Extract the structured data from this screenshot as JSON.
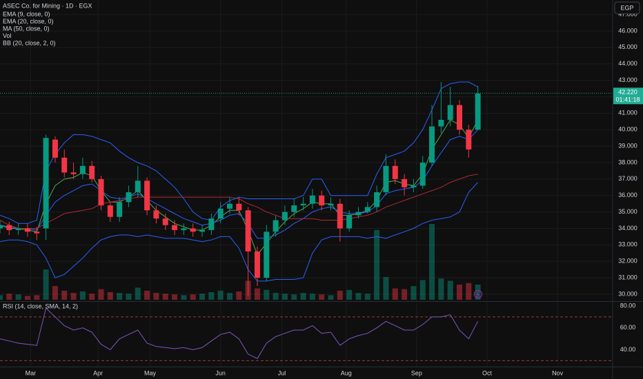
{
  "chart_data": [
    {
      "type": "candlestick",
      "title": "ASEC Co. for Mining · 1D · EGX",
      "currency": "EGP",
      "up_color": "#089981",
      "down_color": "#f23645",
      "x": [
        0,
        3,
        6,
        9,
        12,
        15,
        18,
        21,
        24,
        27,
        30,
        33,
        36,
        39,
        42,
        45,
        48,
        51,
        54,
        57,
        60,
        63,
        66,
        69,
        72,
        75,
        78,
        81,
        84,
        87,
        90,
        93,
        96,
        99,
        102,
        105,
        108,
        111,
        114,
        117,
        120,
        123,
        126,
        129,
        132,
        135,
        138,
        141,
        144,
        147,
        150,
        153,
        156
      ],
      "open": [
        34.0,
        34.2,
        33.9,
        34.0,
        33.8,
        34.0,
        39.4,
        38.3,
        37.4,
        37.3,
        37.8,
        37.0,
        35.4,
        34.7,
        35.6,
        36.2,
        36.9,
        35.1,
        34.6,
        34.2,
        33.9,
        34.0,
        33.8,
        33.9,
        34.6,
        35.2,
        35.5,
        35.1,
        32.6,
        31.0,
        33.8,
        34.5,
        35.0,
        35.4,
        35.5,
        36.0,
        35.4,
        35.5,
        34.0,
        34.8,
        35.0,
        35.3,
        36.2,
        37.8,
        37.0,
        36.5,
        36.6,
        38.0,
        40.2,
        40.6,
        41.5,
        40.0,
        40.0
      ],
      "high": [
        34.5,
        34.4,
        34.3,
        34.3,
        34.1,
        39.7,
        39.6,
        38.8,
        38.0,
        38.3,
        38.1,
        37.2,
        35.6,
        35.9,
        36.6,
        37.8,
        37.1,
        35.4,
        34.9,
        34.5,
        34.3,
        34.3,
        34.2,
        34.9,
        35.6,
        35.9,
        35.9,
        35.3,
        32.9,
        34.2,
        34.8,
        35.4,
        35.8,
        35.9,
        36.4,
        36.3,
        35.9,
        35.8,
        35.1,
        35.3,
        35.6,
        36.6,
        38.5,
        38.2,
        37.3,
        37.0,
        38.4,
        41.5,
        42.9,
        42.6,
        41.8,
        40.3,
        42.65
      ],
      "low": [
        33.7,
        33.6,
        33.6,
        33.5,
        33.3,
        33.3,
        38.0,
        37.1,
        37.0,
        37.0,
        36.8,
        35.1,
        34.4,
        34.4,
        35.3,
        35.9,
        34.8,
        34.3,
        33.9,
        33.6,
        33.6,
        33.5,
        33.5,
        33.6,
        34.3,
        34.9,
        34.8,
        29.9,
        30.5,
        30.8,
        33.5,
        34.2,
        34.7,
        35.1,
        35.2,
        35.1,
        35.1,
        33.2,
        33.8,
        34.6,
        34.9,
        35.0,
        36.0,
        36.7,
        36.0,
        36.2,
        36.4,
        37.8,
        39.8,
        40.2,
        39.7,
        38.3,
        40.0
      ],
      "close": [
        34.2,
        33.9,
        34.0,
        33.8,
        33.7,
        39.5,
        38.3,
        37.4,
        37.3,
        37.8,
        37.0,
        35.4,
        34.7,
        35.6,
        36.2,
        36.9,
        35.1,
        34.6,
        34.2,
        33.9,
        34.0,
        33.8,
        33.9,
        34.6,
        35.2,
        35.5,
        35.1,
        32.6,
        31.0,
        33.8,
        34.5,
        35.0,
        35.4,
        35.5,
        36.0,
        35.4,
        35.5,
        34.0,
        34.8,
        35.0,
        35.3,
        36.2,
        37.8,
        37.0,
        36.5,
        36.6,
        38.0,
        40.2,
        40.6,
        41.5,
        40.0,
        38.8,
        42.2
      ],
      "volume_label": "Vol",
      "volume": [
        60,
        80,
        70,
        50,
        60,
        400,
        180,
        120,
        90,
        110,
        80,
        140,
        100,
        90,
        80,
        160,
        120,
        90,
        80,
        70,
        60,
        70,
        80,
        100,
        120,
        90,
        110,
        250,
        150,
        130,
        90,
        80,
        70,
        90,
        80,
        70,
        60,
        120,
        130,
        90,
        80,
        920,
        300,
        150,
        140,
        180,
        260,
        1000,
        280,
        250,
        200,
        220,
        200
      ],
      "overlays": [
        {
          "name": "EMA (9, close, 0)",
          "color": "#4caf50",
          "values": [
            34.2,
            34.0,
            34.0,
            33.9,
            33.8,
            35.5,
            36.6,
            37.0,
            37.1,
            37.4,
            37.2,
            36.3,
            35.6,
            35.6,
            35.9,
            36.3,
            35.7,
            35.1,
            34.7,
            34.3,
            34.1,
            33.9,
            33.9,
            34.2,
            34.7,
            35.1,
            35.1,
            33.9,
            32.4,
            33.1,
            33.8,
            34.4,
            34.9,
            35.2,
            35.6,
            35.5,
            35.5,
            34.8,
            34.8,
            34.9,
            35.1,
            35.7,
            36.8,
            36.9,
            36.7,
            36.6,
            37.3,
            38.8,
            39.7,
            40.6,
            40.3,
            39.5,
            40.6
          ]
        },
        {
          "name": "EMA (20, close, 0)",
          "color": "#2962ff",
          "values": [
            34.2,
            34.1,
            34.0,
            34.0,
            33.9,
            34.8,
            35.6,
            36.0,
            36.3,
            36.6,
            36.7,
            36.3,
            35.9,
            35.8,
            35.9,
            36.1,
            35.8,
            35.5,
            35.2,
            34.9,
            34.6,
            34.4,
            34.2,
            34.3,
            34.5,
            34.8,
            34.9,
            34.3,
            33.4,
            33.4,
            33.6,
            33.9,
            34.3,
            34.6,
            35.0,
            35.2,
            35.3,
            35.0,
            34.9,
            34.9,
            35.0,
            35.4,
            36.1,
            36.3,
            36.4,
            36.5,
            36.9,
            37.8,
            38.6,
            39.4,
            39.6,
            39.4,
            40.0
          ]
        },
        {
          "name": "MA (50, close, 0)",
          "color": "#b22833",
          "values": [
            34.5,
            34.2,
            34.0,
            34.0,
            34.0,
            34.3,
            34.6,
            34.9,
            35.0,
            35.1,
            35.2,
            35.5,
            35.6,
            35.7,
            35.8,
            35.9,
            35.9,
            35.9,
            35.9,
            35.9,
            35.9,
            35.9,
            35.9,
            35.9,
            35.9,
            35.9,
            35.8,
            35.5,
            35.3,
            35.0,
            34.8,
            34.6,
            34.6,
            34.6,
            34.6,
            34.5,
            34.5,
            34.5,
            34.6,
            34.7,
            34.8,
            35.0,
            35.3,
            35.5,
            35.7,
            35.9,
            36.1,
            36.3,
            36.5,
            36.8,
            37.0,
            37.2,
            37.3
          ]
        },
        {
          "name": "BB (20, close, 2, 0)",
          "color": "#2962ff",
          "upper": [
            34.8,
            34.6,
            34.3,
            34.3,
            34.5,
            37.5,
            38.5,
            39.2,
            39.7,
            39.7,
            39.6,
            39.4,
            39.2,
            38.7,
            38.3,
            38.0,
            37.8,
            37.5,
            37.0,
            36.5,
            35.8,
            35.0,
            34.6,
            34.5,
            35.3,
            35.7,
            35.9,
            35.8,
            35.8,
            35.8,
            35.8,
            35.8,
            35.8,
            36.0,
            37.0,
            37.0,
            36.0,
            36.0,
            36.0,
            36.0,
            36.0,
            37.3,
            38.3,
            38.5,
            38.7,
            39.2,
            40.0,
            41.2,
            42.5,
            42.8,
            42.9,
            42.9,
            42.6
          ],
          "lower": [
            33.2,
            33.3,
            33.3,
            33.2,
            33.0,
            32.2,
            31.0,
            31.2,
            31.7,
            32.2,
            32.8,
            33.3,
            33.5,
            33.6,
            33.6,
            33.5,
            33.6,
            33.5,
            33.4,
            33.4,
            33.4,
            33.3,
            33.2,
            33.3,
            33.5,
            33.5,
            32.8,
            31.5,
            30.8,
            30.8,
            30.9,
            30.9,
            30.9,
            31.0,
            32.5,
            33.3,
            33.5,
            33.5,
            33.5,
            33.5,
            33.4,
            33.5,
            33.4,
            33.6,
            33.8,
            34.0,
            34.3,
            34.5,
            34.6,
            34.7,
            35.0,
            36.2,
            36.8
          ]
        }
      ],
      "last_price": {
        "value": 42.22,
        "label": "42.220",
        "countdown": "01:41:18",
        "color": "#22ab94"
      },
      "xlim": [
        0,
        200
      ],
      "ylim": [
        29.58,
        47.885
      ],
      "yticks": [
        {
          "value": 30,
          "label": "30.000"
        },
        {
          "value": 31,
          "label": "31.000"
        },
        {
          "value": 32,
          "label": "32.000"
        },
        {
          "value": 33,
          "label": "33.000"
        },
        {
          "value": 34,
          "label": "34.000"
        },
        {
          "value": 35,
          "label": "35.000"
        },
        {
          "value": 36,
          "label": "36.000"
        },
        {
          "value": 37,
          "label": "37.000"
        },
        {
          "value": 38,
          "label": "38.000"
        },
        {
          "value": 39,
          "label": "39.000"
        },
        {
          "value": 40,
          "label": "40.000"
        },
        {
          "value": 41,
          "label": "41.000"
        },
        {
          "value": 42,
          "label": "42.000"
        },
        {
          "value": 43,
          "label": "43.000"
        },
        {
          "value": 44,
          "label": "44.000"
        },
        {
          "value": 45,
          "label": "45.000"
        },
        {
          "value": 46,
          "label": "46.000"
        },
        {
          "value": 47,
          "label": "47.000"
        }
      ],
      "grid": true
    },
    {
      "type": "line",
      "title": "RSI (14, close, SMA, 14, 2)",
      "x": [
        0,
        3,
        6,
        9,
        12,
        15,
        18,
        21,
        24,
        27,
        30,
        33,
        36,
        39,
        42,
        45,
        48,
        51,
        54,
        57,
        60,
        63,
        66,
        69,
        72,
        75,
        78,
        81,
        84,
        87,
        90,
        93,
        96,
        99,
        102,
        105,
        108,
        111,
        114,
        117,
        120,
        123,
        126,
        129,
        132,
        135,
        138,
        141,
        144,
        147,
        150,
        153,
        156
      ],
      "series": [
        {
          "color": "#7e57c2",
          "values": [
            50,
            48,
            46,
            45,
            44,
            78,
            70,
            62,
            58,
            60,
            56,
            45,
            40,
            50,
            54,
            58,
            46,
            43,
            42,
            41,
            42,
            40,
            42,
            48,
            54,
            56,
            50,
            36,
            32,
            46,
            52,
            55,
            58,
            58,
            62,
            55,
            56,
            44,
            50,
            53,
            55,
            60,
            66,
            62,
            58,
            58,
            63,
            70,
            70,
            72,
            58,
            50,
            66
          ]
        }
      ],
      "levels": [
        70,
        30
      ],
      "xlim": [
        0,
        200
      ],
      "xticks": [
        {
          "value": 10,
          "label": "Mar"
        },
        {
          "value": 32,
          "label": "Apr"
        },
        {
          "value": 49,
          "label": "May"
        },
        {
          "value": 72,
          "label": "Jun"
        },
        {
          "value": 92,
          "label": "Jul"
        },
        {
          "value": 113,
          "label": "Aug"
        },
        {
          "value": 136,
          "label": "Sep"
        },
        {
          "value": 159,
          "label": "Oct"
        },
        {
          "value": 182,
          "label": "Nov"
        }
      ],
      "ylim": [
        24.6,
        83.8
      ],
      "yticks": [
        {
          "value": 40,
          "label": "40.00"
        },
        {
          "value": 60,
          "label": "60.00"
        },
        {
          "value": 80,
          "label": "80.00"
        }
      ],
      "grid": true
    }
  ]
}
